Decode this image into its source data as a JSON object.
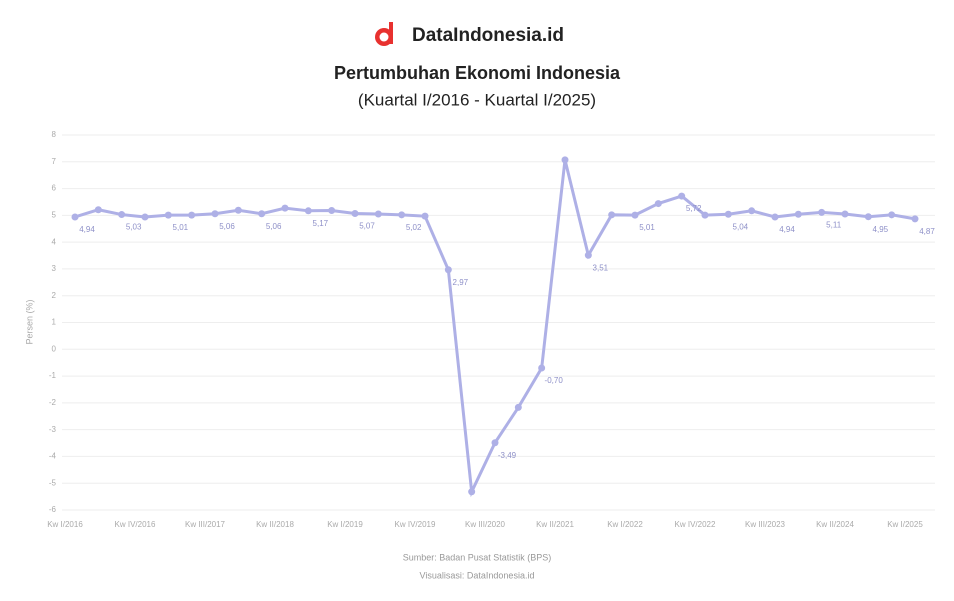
{
  "brand": "DataIndonesia.id",
  "chart_data": {
    "type": "line",
    "title": "Pertumbuhan Ekonomi Indonesia",
    "subtitle": "(Kuartal I/2016 - Kuartal I/2025)",
    "y_label": "Persen (%)",
    "source": [
      "Sumber: Badan Pusat Statistik (BPS)",
      "Visualisasi: DataIndonesia.id"
    ],
    "categories": [
      "Kw I/2016",
      null,
      null,
      "Kw IV/2016",
      null,
      null,
      "Kw III/2017",
      null,
      null,
      "Kw II/2018",
      null,
      null,
      "Kw I/2019",
      null,
      null,
      "Kw IV/2019",
      null,
      null,
      "Kw III/2020",
      null,
      null,
      "Kw II/2021",
      null,
      null,
      "Kw I/2022",
      null,
      null,
      "Kw IV/2022",
      null,
      null,
      "Kw III/2023",
      null,
      null,
      "Kw II/2024",
      null,
      null,
      "Kw I/2025"
    ],
    "series": [
      {
        "name": "Pertumbuhan Ekonomi",
        "color": "#aeb0e6",
        "values": [
          4.94,
          5.21,
          5.03,
          4.94,
          5.01,
          5.01,
          5.06,
          5.19,
          5.06,
          5.27,
          5.17,
          5.18,
          5.07,
          5.05,
          5.02,
          4.97,
          2.97,
          -5.32,
          -3.49,
          -2.17,
          -0.7,
          7.07,
          3.51,
          5.02,
          5.01,
          5.44,
          5.72,
          5.01,
          5.04,
          5.17,
          4.94,
          5.04,
          5.11,
          5.05,
          4.95,
          5.02,
          4.87
        ],
        "value_labels": [
          "4,94",
          null,
          "5,03",
          null,
          "5,01",
          null,
          "5,06",
          null,
          "5,06",
          null,
          "5,17",
          null,
          "5,07",
          null,
          "5,02",
          null,
          "2,97",
          null,
          "-3,49",
          null,
          "-0,70",
          null,
          "3,51",
          null,
          "5,01",
          null,
          "5,72",
          null,
          "5,04",
          null,
          "4,94",
          null,
          "5,11",
          null,
          "4,95",
          null,
          "4,87"
        ]
      }
    ],
    "ylim": [
      -6,
      8
    ],
    "yticks": [
      -6,
      -5,
      -4,
      -3,
      -2,
      -1,
      0,
      1,
      2,
      3,
      4,
      5,
      6,
      7,
      8
    ],
    "grid": true
  }
}
